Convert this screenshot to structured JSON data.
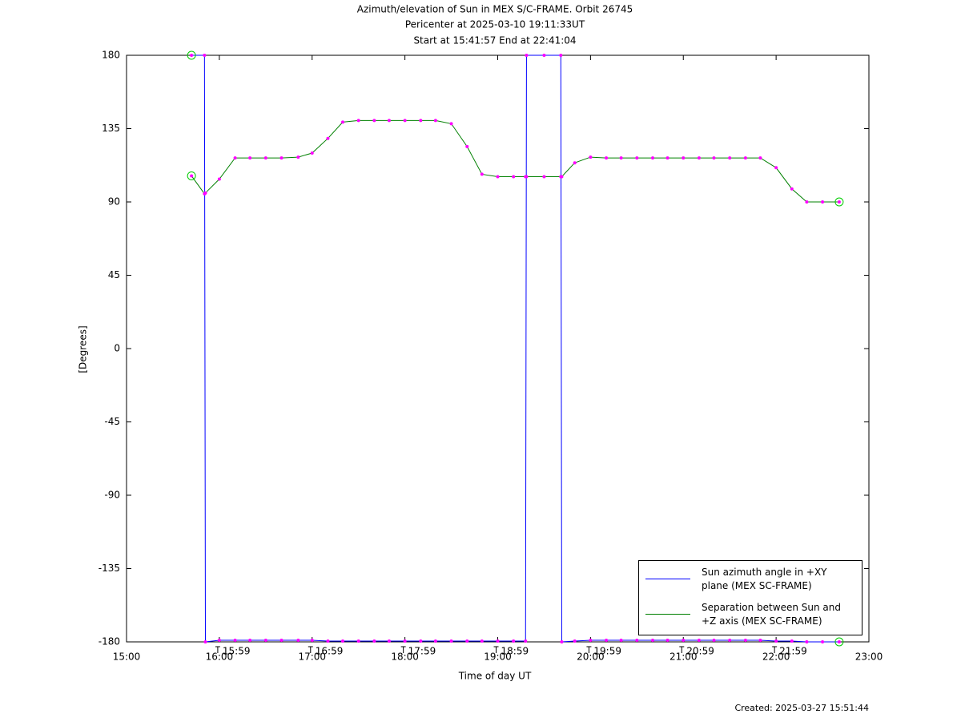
{
  "chart_data": {
    "type": "line",
    "title": "Azimuth/elevation of Sun in MEX S/C-FRAME.  Orbit 26745",
    "subtitle": [
      "Pericenter at 2025-03-10 19:11:33UT",
      "Start at 15:41:57 End at 22:41:04"
    ],
    "x_label": "Time of day UT",
    "y_label": "[Degrees]",
    "created": "Created: 2025-03-27 15:51:44",
    "xlim": [
      15,
      23
    ],
    "xticks": [
      {
        "value": 15,
        "label": "15:00"
      },
      {
        "value": 16,
        "label": "16:00"
      },
      {
        "value": 17,
        "label": "17:00"
      },
      {
        "value": 18,
        "label": "18:00"
      },
      {
        "value": 19,
        "label": "19:00"
      },
      {
        "value": 20,
        "label": "20:00"
      },
      {
        "value": 21,
        "label": "21:00"
      },
      {
        "value": 22,
        "label": "22:00"
      },
      {
        "value": 23,
        "label": "23:00"
      }
    ],
    "time_marks": [
      {
        "value": 15.983,
        "label": "15:59"
      },
      {
        "value": 16.983,
        "label": "16:59"
      },
      {
        "value": 17.983,
        "label": "17:59"
      },
      {
        "value": 18.983,
        "label": "18:59"
      },
      {
        "value": 19.983,
        "label": "19:59"
      },
      {
        "value": 20.983,
        "label": "20:59"
      },
      {
        "value": 21.983,
        "label": "21:59"
      }
    ],
    "ylim": [
      -180,
      180
    ],
    "yticks": [
      180,
      135,
      90,
      45,
      0,
      -45,
      -90,
      -135,
      -180
    ],
    "legend": "lower right",
    "marker_color": "#ff00ff",
    "end_marker_color": "#00cc00",
    "x": [
      15.7,
      15.84,
      15.85,
      16.0,
      16.17,
      16.33,
      16.5,
      16.67,
      16.85,
      17.0,
      17.17,
      17.33,
      17.5,
      17.67,
      17.83,
      18.0,
      18.17,
      18.33,
      18.5,
      18.67,
      18.83,
      19.0,
      19.17,
      19.3,
      19.31,
      19.5,
      19.68,
      19.69,
      19.83,
      20.0,
      20.17,
      20.33,
      20.5,
      20.67,
      20.83,
      21.0,
      21.17,
      21.33,
      21.5,
      21.67,
      21.83,
      22.0,
      22.17,
      22.33,
      22.5,
      22.68
    ],
    "series": [
      {
        "name": "Sun azimuth angle in +XY plane (MEX SC-FRAME)",
        "color": "#0000ff",
        "values": [
          180,
          180,
          -180,
          -179,
          -179,
          -179,
          -179,
          -179,
          -179,
          -179,
          -179.5,
          -179.5,
          -179.5,
          -179.5,
          -179.5,
          -179.5,
          -179.5,
          -179.5,
          -179.5,
          -179.5,
          -179.5,
          -179.5,
          -179.5,
          -179.5,
          180,
          180,
          180,
          -180,
          -179.5,
          -179,
          -179,
          -179,
          -179,
          -179,
          -179,
          -179,
          -179,
          -179,
          -179,
          -179,
          -179,
          -179.5,
          -179.5,
          -180,
          -180,
          -180
        ]
      },
      {
        "name": "Separation between Sun and +Z axis (MEX SC-FRAME)",
        "color": "#008000",
        "values": [
          106,
          95,
          95.5,
          104,
          117,
          117,
          117,
          117,
          117.5,
          120,
          129,
          139,
          140,
          140,
          140,
          140,
          140,
          140,
          138,
          124,
          107,
          105.5,
          105.5,
          105.5,
          105.5,
          105.5,
          105.5,
          105.5,
          114,
          117.5,
          117,
          117,
          117,
          117,
          117,
          117,
          117,
          117,
          117,
          117,
          117,
          111,
          98,
          90,
          90,
          90
        ]
      }
    ]
  }
}
